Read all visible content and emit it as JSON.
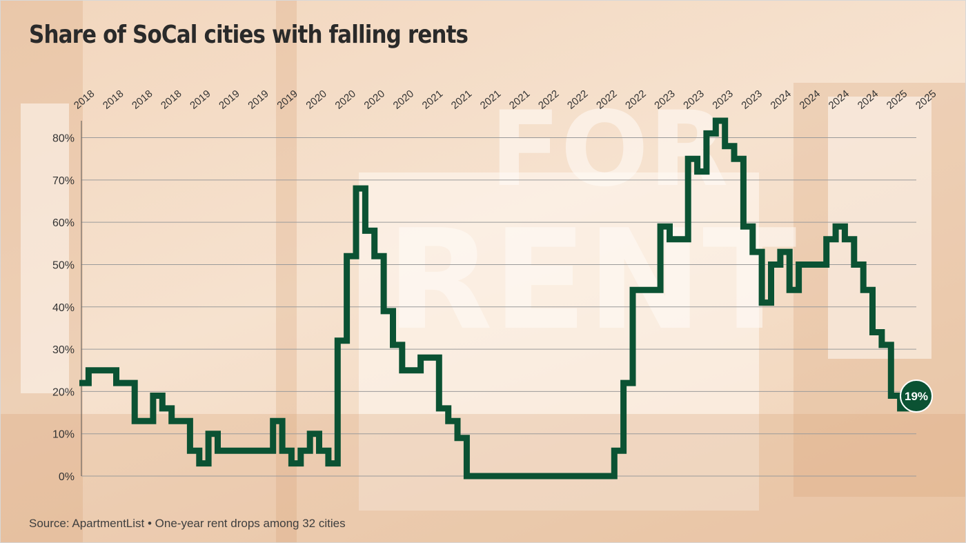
{
  "chart_data": {
    "type": "line",
    "step": true,
    "title": "Share of SoCal cities with falling rents",
    "subtitle": "",
    "source_note": "Source: ApartmentList • One-year rent drops among 32 cities",
    "xlabel": "",
    "ylabel": "",
    "x_tick_labels": [
      "2018",
      "2018",
      "2018",
      "2018",
      "2019",
      "2019",
      "2019",
      "2019",
      "2020",
      "2020",
      "2020",
      "2020",
      "2021",
      "2021",
      "2021",
      "2021",
      "2022",
      "2022",
      "2022",
      "2022",
      "2023",
      "2023",
      "2023",
      "2023",
      "2024",
      "2024",
      "2024",
      "2024",
      "2025",
      "2025"
    ],
    "y_ticks": [
      0,
      10,
      20,
      30,
      40,
      50,
      60,
      70,
      80
    ],
    "y_tick_labels": [
      "0%",
      "10%",
      "20%",
      "30%",
      "40%",
      "50%",
      "60%",
      "70%",
      "80%"
    ],
    "ylim": [
      0,
      84
    ],
    "grid": "horizontal",
    "unit": "%",
    "series": [
      {
        "name": "",
        "color": "#0b5233",
        "values": [
          22,
          25,
          25,
          25,
          22,
          22,
          13,
          13,
          19,
          16,
          13,
          13,
          6,
          3,
          10,
          6,
          6,
          6,
          6,
          6,
          6,
          13,
          6,
          3,
          6,
          10,
          6,
          3,
          32,
          52,
          68,
          58,
          52,
          39,
          31,
          25,
          25,
          28,
          28,
          16,
          13,
          9,
          0,
          0,
          0,
          0,
          0,
          0,
          0,
          0,
          0,
          0,
          0,
          0,
          0,
          0,
          0,
          0,
          6,
          22,
          44,
          44,
          44,
          59,
          56,
          56,
          75,
          72,
          81,
          84,
          78,
          75,
          59,
          53,
          41,
          50,
          53,
          44,
          50,
          50,
          50,
          56,
          59,
          56,
          50,
          44,
          34,
          31,
          19,
          16
        ]
      }
    ],
    "annotation": {
      "label": "19%",
      "value": 19
    },
    "colors": {
      "line": "#0b5233",
      "grid": "#9a9a9a",
      "axis": "#555555",
      "label_badge": "#0b5233",
      "badge_text": "#ffffff"
    }
  }
}
